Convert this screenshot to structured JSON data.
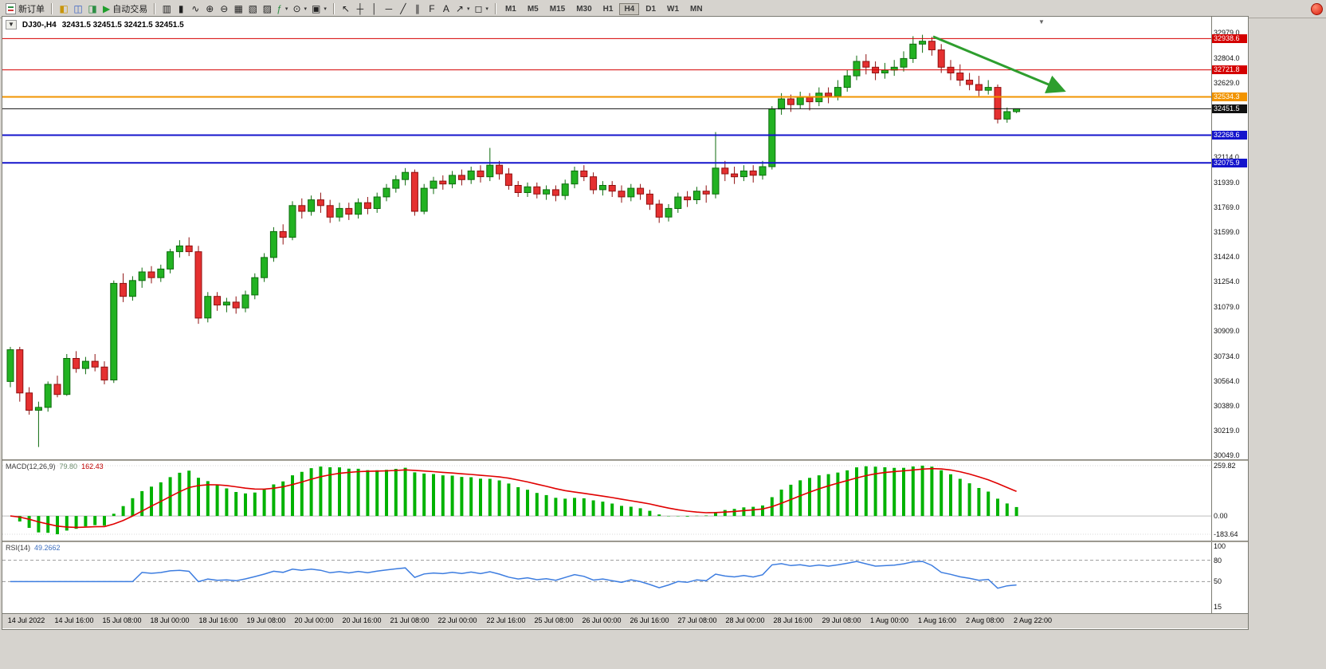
{
  "toolbar": {
    "new_order_label": "新订单",
    "autotrading": {
      "label": "自动交易",
      "glyph": "▶",
      "color": "#1f9e2c"
    },
    "icon_groups": [
      {
        "id": "panels",
        "icons": [
          {
            "name": "market-watch-icon",
            "glyph": "◧",
            "color": "#c8960c"
          },
          {
            "name": "navigator-icon",
            "glyph": "◫",
            "color": "#3a62c4"
          },
          {
            "name": "terminal-icon",
            "glyph": "◨",
            "color": "#2f8f46"
          }
        ]
      },
      {
        "id": "chart-tools",
        "icons": [
          {
            "name": "bar-chart-icon",
            "glyph": "▥"
          },
          {
            "name": "candlestick-icon",
            "glyph": "▮"
          },
          {
            "name": "line-chart-icon",
            "glyph": "∿"
          },
          {
            "name": "zoom-in-icon",
            "glyph": "⊕"
          },
          {
            "name": "zoom-out-icon",
            "glyph": "⊖"
          },
          {
            "name": "tile-windows-icon",
            "glyph": "▦"
          },
          {
            "name": "new-chart-icon",
            "glyph": "▧"
          },
          {
            "name": "chart-profiles-icon",
            "glyph": "▨"
          },
          {
            "name": "indicators-icon",
            "glyph": "ƒ",
            "color": "#2f8f46",
            "caret": true
          },
          {
            "name": "periods-icon",
            "glyph": "⊙",
            "caret": true
          },
          {
            "name": "templates-icon",
            "glyph": "▣",
            "caret": true
          }
        ]
      },
      {
        "id": "drawing-tools",
        "icons": [
          {
            "name": "cursor-icon",
            "glyph": "↖"
          },
          {
            "name": "crosshair-icon",
            "glyph": "┼"
          },
          {
            "name": "vertical-line-icon",
            "glyph": "│"
          },
          {
            "name": "horizontal-line-icon",
            "glyph": "─"
          },
          {
            "name": "trendline-icon",
            "glyph": "╱"
          },
          {
            "name": "channel-icon",
            "glyph": "∥"
          },
          {
            "name": "fibonacci-icon",
            "glyph": "F"
          },
          {
            "name": "text-icon",
            "glyph": "A"
          },
          {
            "name": "arrows-icon",
            "glyph": "↗",
            "caret": true
          },
          {
            "name": "shapes-icon",
            "glyph": "◻",
            "caret": true
          }
        ]
      }
    ],
    "timeframes": [
      "M1",
      "M5",
      "M15",
      "M30",
      "H1",
      "H4",
      "D1",
      "W1",
      "MN"
    ],
    "active_timeframe": "H4"
  },
  "chart": {
    "header": {
      "collapse_glyph": "▼",
      "symbol_period": "DJ30-,H4",
      "ohlc": "32431.5 32451.5 32421.5 32451.5"
    },
    "shift_marker_glyph": "▼"
  },
  "chart_data": {
    "type": "candlestick",
    "symbol": "DJ30-",
    "timeframe": "H4",
    "ohlc_order": [
      "open",
      "high",
      "low",
      "close"
    ],
    "candles": [
      [
        30560,
        30800,
        30520,
        30780
      ],
      [
        30780,
        30800,
        30420,
        30480
      ],
      [
        30480,
        30520,
        30330,
        30360
      ],
      [
        30360,
        30420,
        30105,
        30380
      ],
      [
        30380,
        30560,
        30350,
        30540
      ],
      [
        30540,
        30600,
        30450,
        30470
      ],
      [
        30470,
        30750,
        30460,
        30720
      ],
      [
        30720,
        30770,
        30620,
        30650
      ],
      [
        30650,
        30730,
        30610,
        30700
      ],
      [
        30700,
        30750,
        30630,
        30660
      ],
      [
        30660,
        30700,
        30540,
        30570
      ],
      [
        30570,
        31260,
        30550,
        31240
      ],
      [
        31240,
        31310,
        31110,
        31150
      ],
      [
        31150,
        31290,
        31120,
        31260
      ],
      [
        31260,
        31350,
        31210,
        31320
      ],
      [
        31320,
        31360,
        31240,
        31280
      ],
      [
        31280,
        31370,
        31250,
        31340
      ],
      [
        31340,
        31480,
        31310,
        31460
      ],
      [
        31460,
        31540,
        31420,
        31500
      ],
      [
        31500,
        31560,
        31430,
        31460
      ],
      [
        31460,
        31500,
        30960,
        31000
      ],
      [
        31000,
        31180,
        30970,
        31150
      ],
      [
        31150,
        31180,
        31050,
        31090
      ],
      [
        31090,
        31140,
        31040,
        31110
      ],
      [
        31110,
        31150,
        31030,
        31070
      ],
      [
        31070,
        31190,
        31040,
        31160
      ],
      [
        31160,
        31310,
        31130,
        31280
      ],
      [
        31280,
        31450,
        31250,
        31420
      ],
      [
        31420,
        31630,
        31390,
        31600
      ],
      [
        31600,
        31650,
        31510,
        31560
      ],
      [
        31560,
        31810,
        31540,
        31780
      ],
      [
        31780,
        31830,
        31690,
        31740
      ],
      [
        31740,
        31850,
        31710,
        31820
      ],
      [
        31820,
        31870,
        31730,
        31780
      ],
      [
        31780,
        31820,
        31660,
        31700
      ],
      [
        31700,
        31800,
        31670,
        31760
      ],
      [
        31760,
        31800,
        31680,
        31720
      ],
      [
        31720,
        31830,
        31690,
        31800
      ],
      [
        31800,
        31840,
        31720,
        31760
      ],
      [
        31760,
        31870,
        31730,
        31840
      ],
      [
        31840,
        31930,
        31810,
        31900
      ],
      [
        31900,
        31990,
        31870,
        31960
      ],
      [
        31960,
        32040,
        31920,
        32010
      ],
      [
        32010,
        32030,
        31710,
        31740
      ],
      [
        31740,
        31930,
        31720,
        31900
      ],
      [
        31900,
        31980,
        31860,
        31950
      ],
      [
        31950,
        31990,
        31890,
        31930
      ],
      [
        31930,
        32020,
        31900,
        31990
      ],
      [
        31990,
        32030,
        31920,
        31960
      ],
      [
        31960,
        32050,
        31930,
        32020
      ],
      [
        32020,
        32060,
        31940,
        31980
      ],
      [
        31980,
        32180,
        31950,
        32060
      ],
      [
        32060,
        32090,
        31960,
        32000
      ],
      [
        32000,
        32040,
        31890,
        31920
      ],
      [
        31920,
        31950,
        31840,
        31870
      ],
      [
        31870,
        31940,
        31840,
        31910
      ],
      [
        31910,
        31940,
        31830,
        31860
      ],
      [
        31860,
        31920,
        31820,
        31890
      ],
      [
        31890,
        31920,
        31810,
        31850
      ],
      [
        31850,
        31960,
        31820,
        31930
      ],
      [
        31930,
        32050,
        31900,
        32020
      ],
      [
        32020,
        32060,
        31950,
        31980
      ],
      [
        31980,
        32010,
        31860,
        31890
      ],
      [
        31890,
        31950,
        31850,
        31920
      ],
      [
        31920,
        31950,
        31840,
        31880
      ],
      [
        31880,
        31920,
        31800,
        31840
      ],
      [
        31840,
        31930,
        31810,
        31900
      ],
      [
        31900,
        31930,
        31820,
        31860
      ],
      [
        31860,
        31890,
        31750,
        31790
      ],
      [
        31790,
        31820,
        31660,
        31700
      ],
      [
        31700,
        31790,
        31670,
        31760
      ],
      [
        31760,
        31870,
        31730,
        31840
      ],
      [
        31840,
        31880,
        31770,
        31820
      ],
      [
        31820,
        31910,
        31790,
        31880
      ],
      [
        31880,
        31920,
        31800,
        31860
      ],
      [
        31860,
        32290,
        31830,
        32040
      ],
      [
        32040,
        32090,
        31950,
        32000
      ],
      [
        32000,
        32050,
        31930,
        31980
      ],
      [
        31980,
        32060,
        31950,
        32020
      ],
      [
        32020,
        32060,
        31940,
        31990
      ],
      [
        31990,
        32090,
        31960,
        32050
      ],
      [
        32050,
        32470,
        32030,
        32450
      ],
      [
        32450,
        32560,
        32410,
        32520
      ],
      [
        32520,
        32550,
        32430,
        32480
      ],
      [
        32480,
        32570,
        32450,
        32530
      ],
      [
        32530,
        32560,
        32440,
        32500
      ],
      [
        32500,
        32600,
        32470,
        32560
      ],
      [
        32560,
        32600,
        32490,
        32540
      ],
      [
        32540,
        32650,
        32510,
        32600
      ],
      [
        32600,
        32720,
        32570,
        32680
      ],
      [
        32680,
        32820,
        32650,
        32780
      ],
      [
        32780,
        32830,
        32690,
        32740
      ],
      [
        32740,
        32780,
        32650,
        32700
      ],
      [
        32700,
        32770,
        32660,
        32720
      ],
      [
        32720,
        32790,
        32680,
        32740
      ],
      [
        32740,
        32850,
        32710,
        32800
      ],
      [
        32800,
        32955,
        32770,
        32900
      ],
      [
        32900,
        32965,
        32840,
        32920
      ],
      [
        32920,
        32950,
        32820,
        32860
      ],
      [
        32860,
        32900,
        32700,
        32740
      ],
      [
        32740,
        32790,
        32650,
        32700
      ],
      [
        32700,
        32760,
        32610,
        32650
      ],
      [
        32650,
        32700,
        32580,
        32620
      ],
      [
        32620,
        32680,
        32540,
        32580
      ],
      [
        32580,
        32650,
        32550,
        32600
      ],
      [
        32600,
        32620,
        32350,
        32380
      ],
      [
        32380,
        32460,
        32355,
        32431.5
      ],
      [
        32431.5,
        32451.5,
        32421.5,
        32451.5
      ]
    ],
    "colors": {
      "up_fill": "#22b222",
      "up_stroke": "#0d6b0d",
      "down_fill": "#e53030",
      "down_stroke": "#8f1010"
    },
    "price_axis": {
      "min": 30020,
      "max": 33090,
      "ticks": [
        32979.0,
        32804.0,
        32629.0,
        32114.0,
        31939.0,
        31769.0,
        31599.0,
        31424.0,
        31254.0,
        31079.0,
        30909.0,
        30734.0,
        30564.0,
        30389.0,
        30219.0,
        30049.0
      ]
    },
    "hlines": [
      {
        "price": 32938.6,
        "label": "32938.6",
        "color": "#d40000",
        "width": 1,
        "role": "resistance"
      },
      {
        "price": 32721.8,
        "label": "32721.8",
        "color": "#d40000",
        "width": 1,
        "role": "resistance"
      },
      {
        "price": 32534.3,
        "label": "32534.3",
        "color": "#f29400",
        "width": 2,
        "role": "level"
      },
      {
        "price": 32451.5,
        "label": "32451.5",
        "color": "#111111",
        "width": 1,
        "role": "current-price"
      },
      {
        "price": 32268.6,
        "label": "32268.6",
        "color": "#1414cc",
        "width": 2,
        "role": "support"
      },
      {
        "price": 32075.9,
        "label": "32075.9",
        "color": "#1414cc",
        "width": 2,
        "role": "support"
      }
    ],
    "current_price": 32451.5,
    "arrow": {
      "color": "#2e9e2e",
      "x1_frac": 0.77,
      "price1": 32952,
      "x2_frac": 0.878,
      "price2": 32576
    },
    "macd": {
      "name": "MACD(12,26,9)",
      "value": "79.80",
      "signal_value": "162.43",
      "fast": 12,
      "slow": 26,
      "signal_period": 9,
      "axis_labels": [
        "259.82",
        "0.00",
        "-183.64"
      ],
      "histogram_color": "#00b200",
      "signal_color": "#e00000"
    },
    "rsi": {
      "name": "RSI(14)",
      "value": "49.2662",
      "period": 14,
      "axis_labels": [
        "100",
        "80",
        "50",
        "15"
      ],
      "levels": [
        80,
        50
      ],
      "line_color": "#3d7de0"
    },
    "time_labels": [
      "14 Jul 2022",
      "14 Jul 16:00",
      "15 Jul 08:00",
      "18 Jul 00:00",
      "18 Jul 16:00",
      "19 Jul 08:00",
      "20 Jul 00:00",
      "20 Jul 16:00",
      "21 Jul 08:00",
      "22 Jul 00:00",
      "22 Jul 16:00",
      "25 Jul 08:00",
      "26 Jul 00:00",
      "26 Jul 16:00",
      "27 Jul 08:00",
      "28 Jul 00:00",
      "28 Jul 16:00",
      "29 Jul 08:00",
      "1 Aug 00:00",
      "1 Aug 16:00",
      "2 Aug 08:00",
      "2 Aug 22:00"
    ]
  }
}
